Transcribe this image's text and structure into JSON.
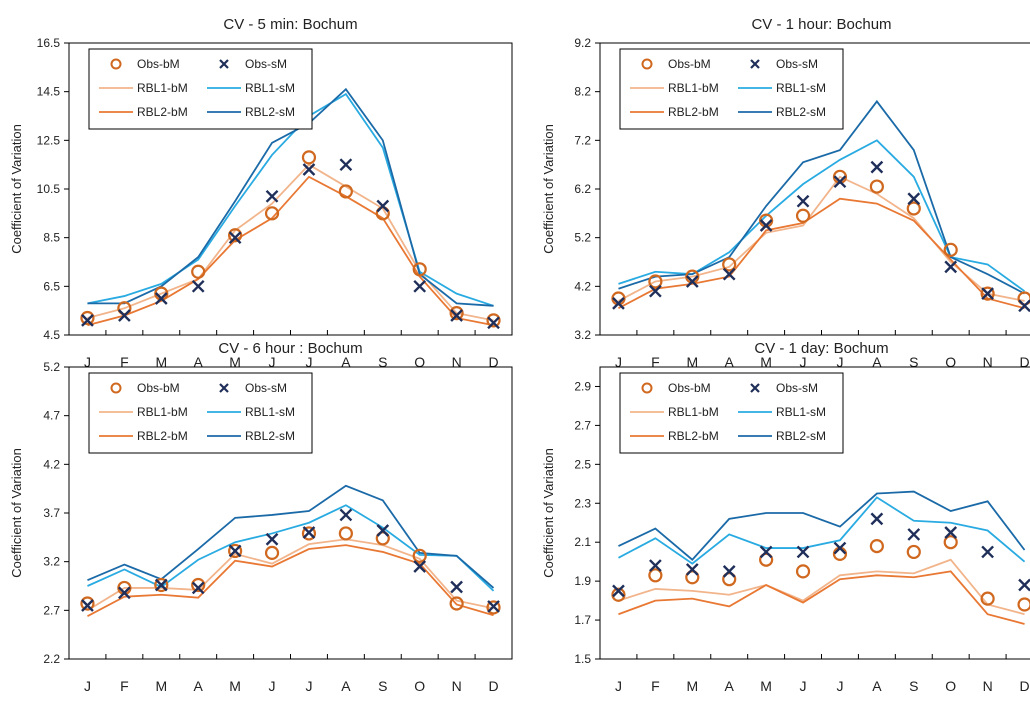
{
  "chart_data": [
    {
      "type": "line",
      "title": "CV - 5 min: Bochum",
      "ylabel": "Coefficient of Variation",
      "xlabel": "",
      "categories": [
        "J",
        "F",
        "M",
        "A",
        "M",
        "J",
        "J",
        "A",
        "S",
        "O",
        "N",
        "D"
      ],
      "ylim": [
        4.5,
        16.5
      ],
      "yticks": [
        "4.5",
        "6.5",
        "8.5",
        "10.5",
        "12.5",
        "14.5",
        "16.5"
      ],
      "legend_position": "top-left",
      "series": [
        {
          "name": "Obs-bM",
          "kind": "marker-circle",
          "color": "#d0691f",
          "values": [
            5.2,
            5.6,
            6.2,
            7.1,
            8.6,
            9.5,
            11.8,
            10.4,
            9.5,
            7.2,
            5.4,
            5.1
          ]
        },
        {
          "name": "Obs-sM",
          "kind": "marker-x",
          "color": "#1f2f5a",
          "values": [
            5.1,
            5.3,
            6.0,
            6.5,
            8.5,
            10.2,
            11.3,
            11.5,
            9.8,
            6.5,
            5.3,
            5.0
          ]
        },
        {
          "name": "RBL1-bM",
          "kind": "line",
          "color": "#f2b48a",
          "values": [
            5.2,
            5.6,
            6.2,
            6.8,
            8.8,
            9.9,
            11.5,
            10.6,
            9.7,
            7.1,
            5.4,
            5.1
          ]
        },
        {
          "name": "RBL1-sM",
          "kind": "line",
          "color": "#29abe2",
          "values": [
            5.8,
            6.1,
            6.6,
            7.6,
            9.8,
            11.9,
            13.5,
            14.4,
            12.2,
            7.1,
            6.2,
            5.7
          ]
        },
        {
          "name": "RBL2-bM",
          "kind": "line",
          "color": "#e87833",
          "values": [
            4.9,
            5.3,
            5.9,
            6.8,
            8.4,
            9.3,
            11.0,
            10.2,
            9.3,
            6.9,
            5.2,
            4.9
          ]
        },
        {
          "name": "RBL2-sM",
          "kind": "line",
          "color": "#1b6aa8",
          "values": [
            5.8,
            5.8,
            6.5,
            7.7,
            10.0,
            12.4,
            13.2,
            14.6,
            12.5,
            7.0,
            5.8,
            5.7
          ]
        }
      ]
    },
    {
      "type": "line",
      "title": "CV - 1 hour: Bochum",
      "ylabel": "Coefficient of Variation",
      "xlabel": "",
      "categories": [
        "J",
        "F",
        "M",
        "A",
        "M",
        "J",
        "J",
        "A",
        "S",
        "O",
        "N",
        "D"
      ],
      "ylim": [
        3.2,
        9.2
      ],
      "yticks": [
        "3.2",
        "4.2",
        "5.2",
        "6.2",
        "7.2",
        "8.2",
        "9.2"
      ],
      "legend_position": "top-left",
      "series": [
        {
          "name": "Obs-bM",
          "kind": "marker-circle",
          "color": "#d0691f",
          "values": [
            3.95,
            4.3,
            4.4,
            4.65,
            5.55,
            5.65,
            6.45,
            6.25,
            5.8,
            4.95,
            4.05,
            3.95
          ]
        },
        {
          "name": "Obs-sM",
          "kind": "marker-x",
          "color": "#1f2f5a",
          "values": [
            3.85,
            4.1,
            4.3,
            4.45,
            5.45,
            5.95,
            6.35,
            6.65,
            6.0,
            4.6,
            4.05,
            3.8
          ]
        },
        {
          "name": "RBL1-bM",
          "kind": "line",
          "color": "#f2b48a",
          "values": [
            3.9,
            4.3,
            4.4,
            4.6,
            5.3,
            5.45,
            6.45,
            6.1,
            5.6,
            4.7,
            4.05,
            3.9
          ]
        },
        {
          "name": "RBL1-sM",
          "kind": "line",
          "color": "#29abe2",
          "values": [
            4.25,
            4.5,
            4.45,
            4.9,
            5.65,
            6.3,
            6.8,
            7.2,
            6.45,
            4.8,
            4.65,
            4.1
          ]
        },
        {
          "name": "RBL2-bM",
          "kind": "line",
          "color": "#e87833",
          "values": [
            3.75,
            4.15,
            4.25,
            4.4,
            5.35,
            5.5,
            6.0,
            5.9,
            5.55,
            4.75,
            3.95,
            3.75
          ]
        },
        {
          "name": "RBL2-sM",
          "kind": "line",
          "color": "#1b6aa8",
          "values": [
            4.15,
            4.4,
            4.45,
            4.8,
            5.85,
            6.75,
            7.0,
            8.0,
            7.0,
            4.8,
            4.45,
            4.05
          ]
        }
      ]
    },
    {
      "type": "line",
      "title": "CV - 6 hour : Bochum",
      "ylabel": "Coefficient of Variation",
      "xlabel": "",
      "categories": [
        "J",
        "F",
        "M",
        "A",
        "M",
        "J",
        "J",
        "A",
        "S",
        "O",
        "N",
        "D"
      ],
      "ylim": [
        2.2,
        5.2
      ],
      "yticks": [
        "2.2",
        "2.7",
        "3.2",
        "3.7",
        "4.2",
        "4.7",
        "5.2"
      ],
      "legend_position": "top-left",
      "series": [
        {
          "name": "Obs-bM",
          "kind": "marker-circle",
          "color": "#d0691f",
          "values": [
            2.77,
            2.93,
            2.96,
            2.96,
            3.31,
            3.29,
            3.49,
            3.49,
            3.44,
            3.26,
            2.77,
            2.73
          ]
        },
        {
          "name": "Obs-sM",
          "kind": "marker-x",
          "color": "#1f2f5a",
          "values": [
            2.75,
            2.88,
            2.96,
            2.93,
            3.31,
            3.43,
            3.5,
            3.68,
            3.52,
            3.15,
            2.94,
            2.74
          ]
        },
        {
          "name": "RBL1-bM",
          "kind": "line",
          "color": "#f2b48a",
          "values": [
            2.7,
            2.93,
            2.93,
            2.91,
            3.28,
            3.18,
            3.38,
            3.43,
            3.37,
            3.23,
            2.8,
            2.72
          ]
        },
        {
          "name": "RBL1-sM",
          "kind": "line",
          "color": "#29abe2",
          "values": [
            2.95,
            3.12,
            2.94,
            3.22,
            3.4,
            3.49,
            3.6,
            3.78,
            3.55,
            3.27,
            3.26,
            2.9
          ]
        },
        {
          "name": "RBL2-bM",
          "kind": "line",
          "color": "#e87833",
          "values": [
            2.64,
            2.84,
            2.86,
            2.83,
            3.21,
            3.15,
            3.33,
            3.37,
            3.3,
            3.18,
            2.76,
            2.65
          ]
        },
        {
          "name": "RBL2-sM",
          "kind": "line",
          "color": "#1b6aa8",
          "values": [
            3.01,
            3.17,
            3.02,
            3.33,
            3.65,
            3.68,
            3.72,
            3.98,
            3.83,
            3.29,
            3.26,
            2.93
          ]
        }
      ]
    },
    {
      "type": "line",
      "title": "CV - 1 day: Bochum",
      "ylabel": "Coefficient of Variation",
      "xlabel": "",
      "categories": [
        "J",
        "F",
        "M",
        "A",
        "M",
        "J",
        "J",
        "A",
        "S",
        "O",
        "N",
        "D"
      ],
      "ylim": [
        1.5,
        3.0
      ],
      "yticks": [
        "1.5",
        "1.7",
        "1.9",
        "2.1",
        "2.3",
        "2.5",
        "2.7",
        "2.9"
      ],
      "legend_position": "top-left",
      "series": [
        {
          "name": "Obs-bM",
          "kind": "marker-circle",
          "color": "#d0691f",
          "values": [
            1.83,
            1.93,
            1.92,
            1.91,
            2.01,
            1.95,
            2.04,
            2.08,
            2.05,
            2.1,
            1.81,
            1.78
          ]
        },
        {
          "name": "Obs-sM",
          "kind": "marker-x",
          "color": "#1f2f5a",
          "values": [
            1.85,
            1.98,
            1.96,
            1.95,
            2.05,
            2.05,
            2.07,
            2.22,
            2.14,
            2.15,
            2.05,
            1.88
          ]
        },
        {
          "name": "RBL1-bM",
          "kind": "line",
          "color": "#f2b48a",
          "values": [
            1.8,
            1.86,
            1.85,
            1.83,
            1.88,
            1.8,
            1.93,
            1.95,
            1.94,
            2.01,
            1.78,
            1.73
          ]
        },
        {
          "name": "RBL1-sM",
          "kind": "line",
          "color": "#29abe2",
          "values": [
            2.02,
            2.12,
            1.99,
            2.14,
            2.07,
            2.07,
            2.11,
            2.33,
            2.21,
            2.2,
            2.16,
            2.0
          ]
        },
        {
          "name": "RBL2-bM",
          "kind": "line",
          "color": "#e87833",
          "values": [
            1.73,
            1.8,
            1.81,
            1.77,
            1.88,
            1.79,
            1.91,
            1.93,
            1.92,
            1.95,
            1.73,
            1.68
          ]
        },
        {
          "name": "RBL2-sM",
          "kind": "line",
          "color": "#1b6aa8",
          "values": [
            2.08,
            2.17,
            2.01,
            2.22,
            2.25,
            2.25,
            2.18,
            2.35,
            2.36,
            2.26,
            2.31,
            2.06
          ]
        }
      ]
    }
  ]
}
